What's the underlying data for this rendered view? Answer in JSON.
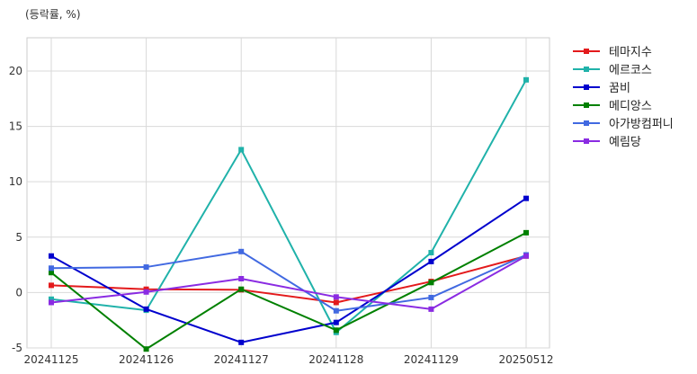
{
  "chart_data": {
    "type": "line",
    "ylabel": "(등락률, %)",
    "categories": [
      "20241125",
      "20241126",
      "20241127",
      "20241128",
      "20241129",
      "20250512"
    ],
    "ylim": [
      -5,
      23
    ],
    "yticks": [
      -5,
      0,
      5,
      10,
      15,
      20
    ],
    "grid": true,
    "legend_position": "right",
    "series": [
      {
        "name": "테마지수",
        "color": "#e31a1c",
        "values": [
          0.65,
          0.3,
          0.25,
          -0.9,
          1.0,
          3.3
        ]
      },
      {
        "name": "에르코스",
        "color": "#20b2aa",
        "values": [
          -0.6,
          -1.6,
          12.9,
          -3.6,
          3.6,
          19.2
        ]
      },
      {
        "name": "꿈비",
        "color": "#0000cd",
        "values": [
          3.3,
          -1.5,
          -4.5,
          -2.7,
          2.8,
          8.5
        ]
      },
      {
        "name": "메디앙스",
        "color": "#008000",
        "values": [
          1.8,
          -5.1,
          0.3,
          -3.4,
          0.9,
          5.4
        ]
      },
      {
        "name": "아가방컴퍼니",
        "color": "#4169e1",
        "values": [
          2.2,
          2.3,
          3.7,
          -1.65,
          -0.45,
          3.4
        ]
      },
      {
        "name": "예림당",
        "color": "#8a2be2",
        "values": [
          -0.9,
          0.05,
          1.25,
          -0.4,
          -1.5,
          3.3
        ]
      }
    ]
  }
}
